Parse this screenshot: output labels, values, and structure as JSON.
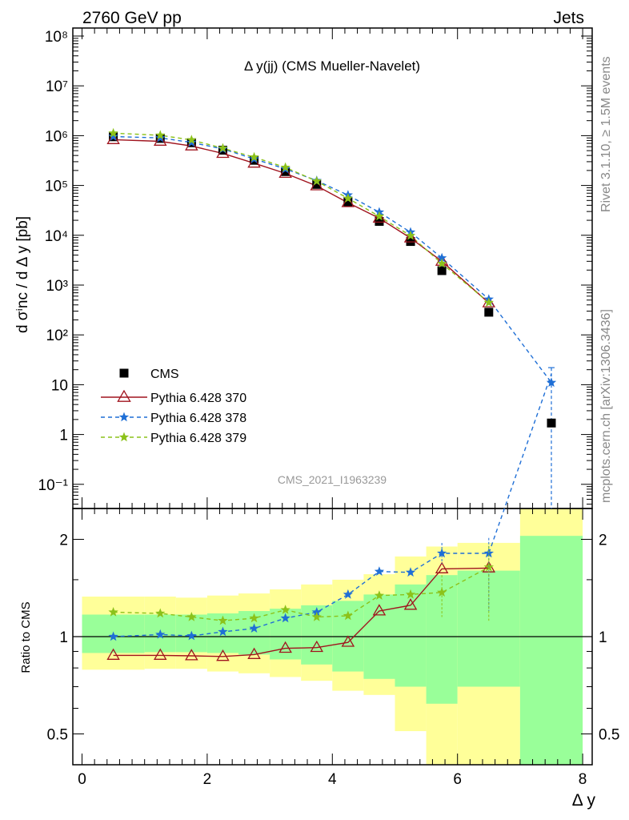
{
  "header": {
    "left": "2760 GeV pp",
    "right": "Jets"
  },
  "side_labels": {
    "top": "Rivet 3.1.10, ≥ 1.5M events",
    "bottom": "mcplots.cern.ch [arXiv:1306.3436]"
  },
  "colors": {
    "data": "#000000",
    "p370": "#a0141e",
    "p378": "#1f6fd6",
    "p379": "#8cc21a",
    "band_yellow": "#ffff99",
    "band_green": "#99ff99"
  },
  "chart_data": [
    {
      "type": "line",
      "title": "Δ y(jj) (CMS Mueller-Navelet)",
      "ylabel": "d σⁱnc / d Δ y [pb]",
      "analysis_tag": "CMS_2021_I1963239",
      "yscale": "log",
      "ylim": [
        0.035,
        150000000
      ],
      "xlim": [
        -0.2,
        8
      ],
      "y_tick_labels": [
        "10⁻¹",
        "1",
        "10",
        "10²",
        "10³",
        "10⁴",
        "10⁵",
        "10⁶",
        "10⁷",
        "10⁸"
      ],
      "legend": [
        "CMS",
        "Pythia 6.428 370",
        "Pythia 6.428 378",
        "Pythia 6.428 379"
      ],
      "legend_position": "lower-left",
      "x": [
        0.5,
        1.25,
        1.75,
        2.25,
        2.75,
        3.25,
        3.75,
        4.25,
        4.75,
        5.25,
        5.75,
        6.5,
        7.5
      ],
      "series": [
        {
          "name": "CMS",
          "marker": "square",
          "values": [
            950000,
            880000,
            720000,
            510000,
            320000,
            190000,
            105000,
            47000,
            19000,
            7500,
            1950,
            285,
            1.7
          ]
        },
        {
          "name": "Pythia 6.428 370",
          "marker": "triangle-open",
          "values": [
            830000,
            770000,
            620000,
            440000,
            280000,
            175000,
            98000,
            45000,
            22000,
            8800,
            3000,
            440,
            null
          ]
        },
        {
          "name": "Pythia 6.428 378",
          "marker": "star",
          "values": [
            960000,
            900000,
            730000,
            540000,
            340000,
            215000,
            125000,
            64000,
            29000,
            11500,
            3500,
            520,
            11
          ]
        },
        {
          "name": "Pythia 6.428 379",
          "marker": "star",
          "values": [
            1120000,
            1020000,
            820000,
            560000,
            370000,
            230000,
            122000,
            55000,
            24000,
            9800,
            2700,
            445,
            null
          ]
        }
      ]
    },
    {
      "type": "line",
      "ylabel": "Ratio to CMS",
      "xlabel": "Δ y",
      "yscale": "log",
      "ylim": [
        0.35,
        2.3
      ],
      "xlim": [
        -0.2,
        8
      ],
      "x_tick_labels": [
        "0",
        "2",
        "4",
        "6",
        "8"
      ],
      "y_tick_labels": [
        "0.5",
        "1",
        "2"
      ],
      "uncertainty_bands": {
        "edges": [
          0,
          1,
          1.5,
          2,
          2.5,
          3,
          3.5,
          4,
          4.5,
          5,
          5.5,
          6,
          7,
          8
        ],
        "yellow_low": [
          0.79,
          0.795,
          0.795,
          0.78,
          0.77,
          0.75,
          0.73,
          0.68,
          0.66,
          0.51,
          0.37,
          0.37,
          0.3
        ],
        "yellow_high": [
          1.33,
          1.33,
          1.32,
          1.34,
          1.36,
          1.4,
          1.45,
          1.5,
          1.56,
          1.77,
          1.9,
          1.95,
          2.6
        ],
        "green_low": [
          0.89,
          0.895,
          0.895,
          0.89,
          0.88,
          0.85,
          0.82,
          0.78,
          0.74,
          0.7,
          0.62,
          0.7,
          0.35
        ],
        "green_high": [
          1.17,
          1.17,
          1.17,
          1.18,
          1.2,
          1.22,
          1.25,
          1.29,
          1.35,
          1.45,
          1.55,
          1.6,
          2.05
        ]
      },
      "x": [
        0.5,
        1.25,
        1.75,
        2.25,
        2.75,
        3.25,
        3.75,
        4.25,
        4.75,
        5.25,
        5.75,
        6.5,
        7.5
      ],
      "series": [
        {
          "name": "Pythia 6.428 370",
          "values": [
            0.875,
            0.875,
            0.872,
            0.868,
            0.88,
            0.92,
            0.925,
            0.96,
            1.2,
            1.25,
            1.62,
            1.63,
            null
          ]
        },
        {
          "name": "Pythia 6.428 378",
          "values": [
            1.0,
            1.015,
            1.005,
            1.035,
            1.06,
            1.14,
            1.19,
            1.35,
            1.59,
            1.58,
            1.81,
            1.81,
            6.5
          ]
        },
        {
          "name": "Pythia 6.428 379",
          "values": [
            1.19,
            1.18,
            1.15,
            1.12,
            1.14,
            1.21,
            1.15,
            1.16,
            1.34,
            1.35,
            1.37,
            1.64,
            null
          ]
        }
      ]
    }
  ]
}
